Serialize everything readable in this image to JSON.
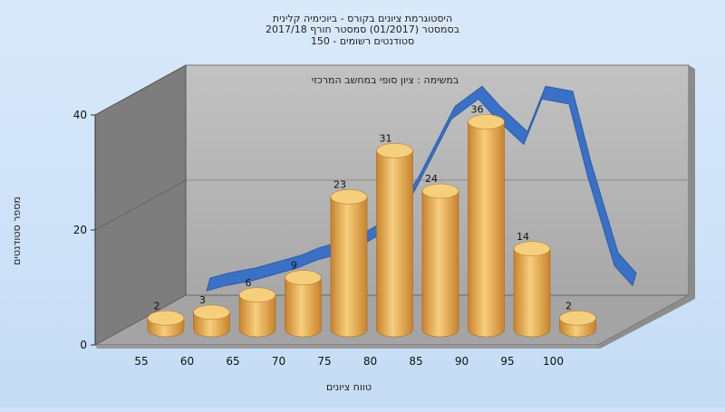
{
  "chart_data": {
    "type": "bar",
    "title_lines": [
      "היסטוגרמת ציונים בקורס - ביוכימיה קלינית",
      "בסמסטר  (01/2017)  סמסטר חורף 2017/18",
      "סטודנטים רשומים - 150"
    ],
    "subtitle": "במשימה : ציון סופי במחשב המרכזי",
    "xlabel": "טווח ציונים",
    "ylabel": "מספר סטודנטים",
    "categories": [
      "55",
      "60",
      "65",
      "70",
      "75",
      "80",
      "85",
      "90",
      "95",
      "100"
    ],
    "values": [
      2,
      3,
      6,
      9,
      23,
      31,
      24,
      36,
      14,
      2
    ],
    "y_ticks": [
      "0",
      "20",
      "40"
    ],
    "ylim": [
      0,
      40
    ],
    "grid": true,
    "series": [
      {
        "values": [
          2,
          3,
          6,
          9,
          23,
          31,
          24,
          36,
          14,
          2
        ]
      }
    ],
    "curve": {
      "x": [
        55,
        57,
        60,
        62,
        65,
        67,
        70,
        72,
        75,
        78,
        80,
        82,
        85,
        87,
        90,
        92,
        95,
        97,
        99,
        100,
        102
      ],
      "y": [
        5,
        6,
        7,
        8,
        9.5,
        11,
        12.5,
        14,
        17,
        25,
        32,
        39,
        43,
        39,
        34,
        43,
        42,
        28,
        16,
        10,
        6
      ]
    },
    "colors": {
      "bar_light": "#f6cf7d",
      "bar_dark": "#c9822c",
      "curve": "#3a70c6",
      "back_wall": "#b3b3b3",
      "side_wall": "#7a7a7a",
      "floor": "#a6a6a6"
    }
  }
}
